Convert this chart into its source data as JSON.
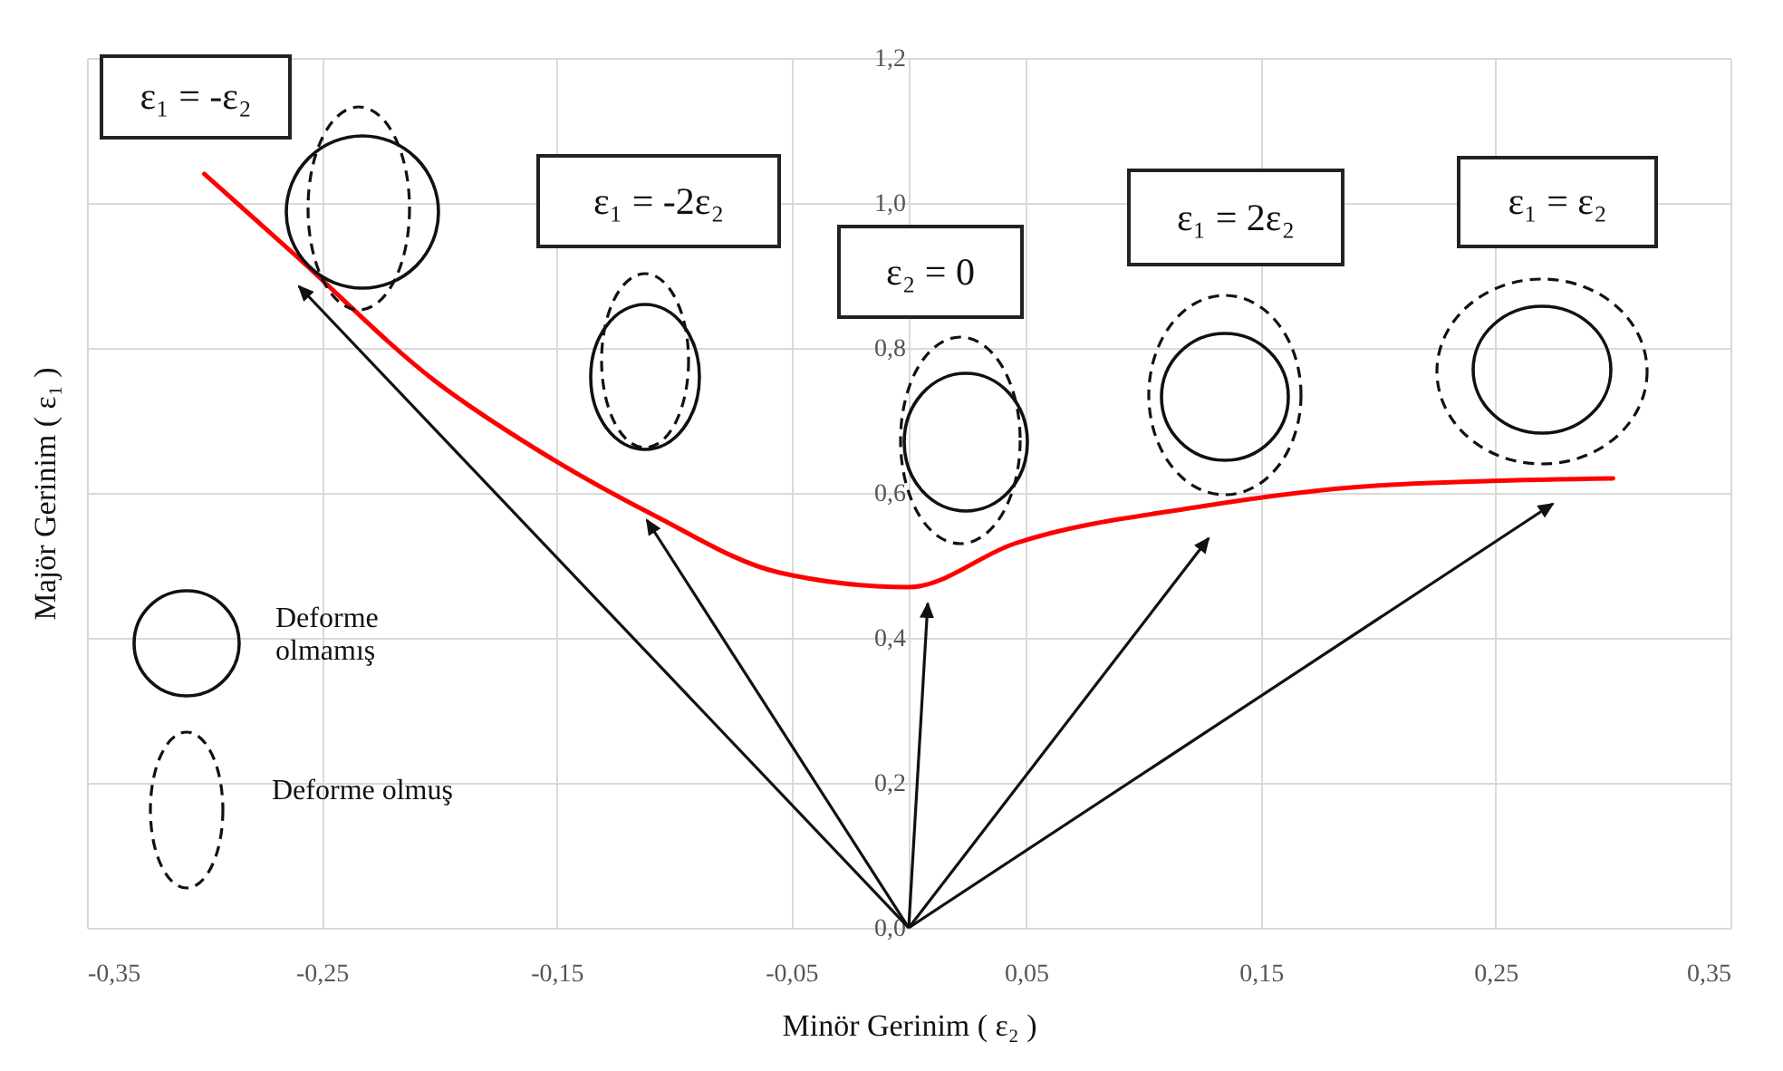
{
  "chart_data": {
    "type": "line",
    "xlabel": "Minör Gerinim ( ε₂ )",
    "ylabel": "Majör Gerinim ( ε₁ )",
    "x": [
      -0.3,
      -0.262,
      -0.202,
      -0.156,
      -0.109,
      -0.055,
      0.0,
      0.045,
      0.122,
      0.199,
      0.3
    ],
    "series": [
      {
        "color": "#ff0000",
        "values": [
          1.04,
          0.93,
          0.755,
          0.655,
          0.57,
          0.49,
          0.47,
          0.53,
          0.58,
          0.61,
          0.62
        ]
      }
    ],
    "xlim": [
      -0.35,
      0.35
    ],
    "ylim": [
      0,
      1.2
    ],
    "xticks": [
      {
        "value": -0.35,
        "label": "-0,35"
      },
      {
        "value": -0.25,
        "label": "-0,25"
      },
      {
        "value": -0.15,
        "label": "-0,15"
      },
      {
        "value": -0.05,
        "label": "-0,05"
      },
      {
        "value": 0.05,
        "label": "0,05"
      },
      {
        "value": 0.15,
        "label": "0,15"
      },
      {
        "value": 0.25,
        "label": "0,25"
      },
      {
        "value": 0.35,
        "label": "0,35"
      }
    ],
    "yticks": [
      {
        "value": 0,
        "label": "0,0"
      },
      {
        "value": 0.2,
        "label": "0,2"
      },
      {
        "value": 0.4,
        "label": "0,4"
      },
      {
        "value": 0.6,
        "label": "0,6"
      },
      {
        "value": 0.8,
        "label": "0,8"
      },
      {
        "value": 1.0,
        "label": "1,0"
      },
      {
        "value": 1.2,
        "label": "1,2"
      }
    ],
    "grid": true,
    "annotations": [
      "ε₁ = -ε₂",
      "ε₁ = -2ε₂",
      "ε₂ = 0",
      "ε₁ = 2ε₂",
      "ε₁ = ε₂",
      "Deforme olmamış",
      "Deforme olmuş"
    ]
  }
}
